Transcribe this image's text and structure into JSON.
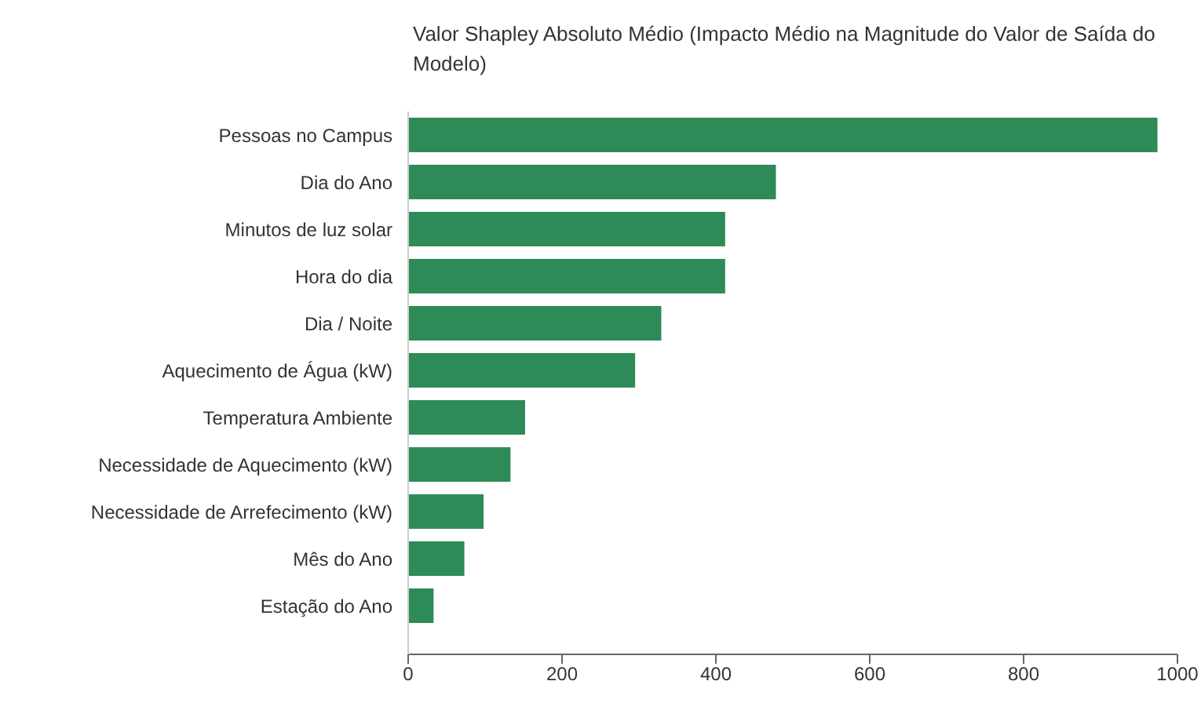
{
  "chart_data": {
    "type": "bar",
    "orientation": "horizontal",
    "title": "Valor Shapley Absoluto Médio (Impacto Médio na Magnitude do Valor de Saída do Modelo)",
    "categories": [
      "Pessoas no Campus",
      "Dia do Ano",
      "Minutos de luz solar",
      "Hora do dia",
      "Dia / Noite",
      "Aquecimento de Água (kW)",
      "Temperatura Ambiente",
      "Necessidade de Aquecimento (kW)",
      "Necessidade de Arrefecimento (kW)",
      "Mês do Ano",
      "Estação do Ano"
    ],
    "values": [
      973,
      477,
      411,
      411,
      328,
      294,
      151,
      132,
      97,
      72,
      32
    ],
    "color": "#2e8b57",
    "xlim": [
      0,
      1000
    ],
    "xticks": [
      0,
      200,
      400,
      600,
      800,
      1000
    ],
    "grid": false
  }
}
